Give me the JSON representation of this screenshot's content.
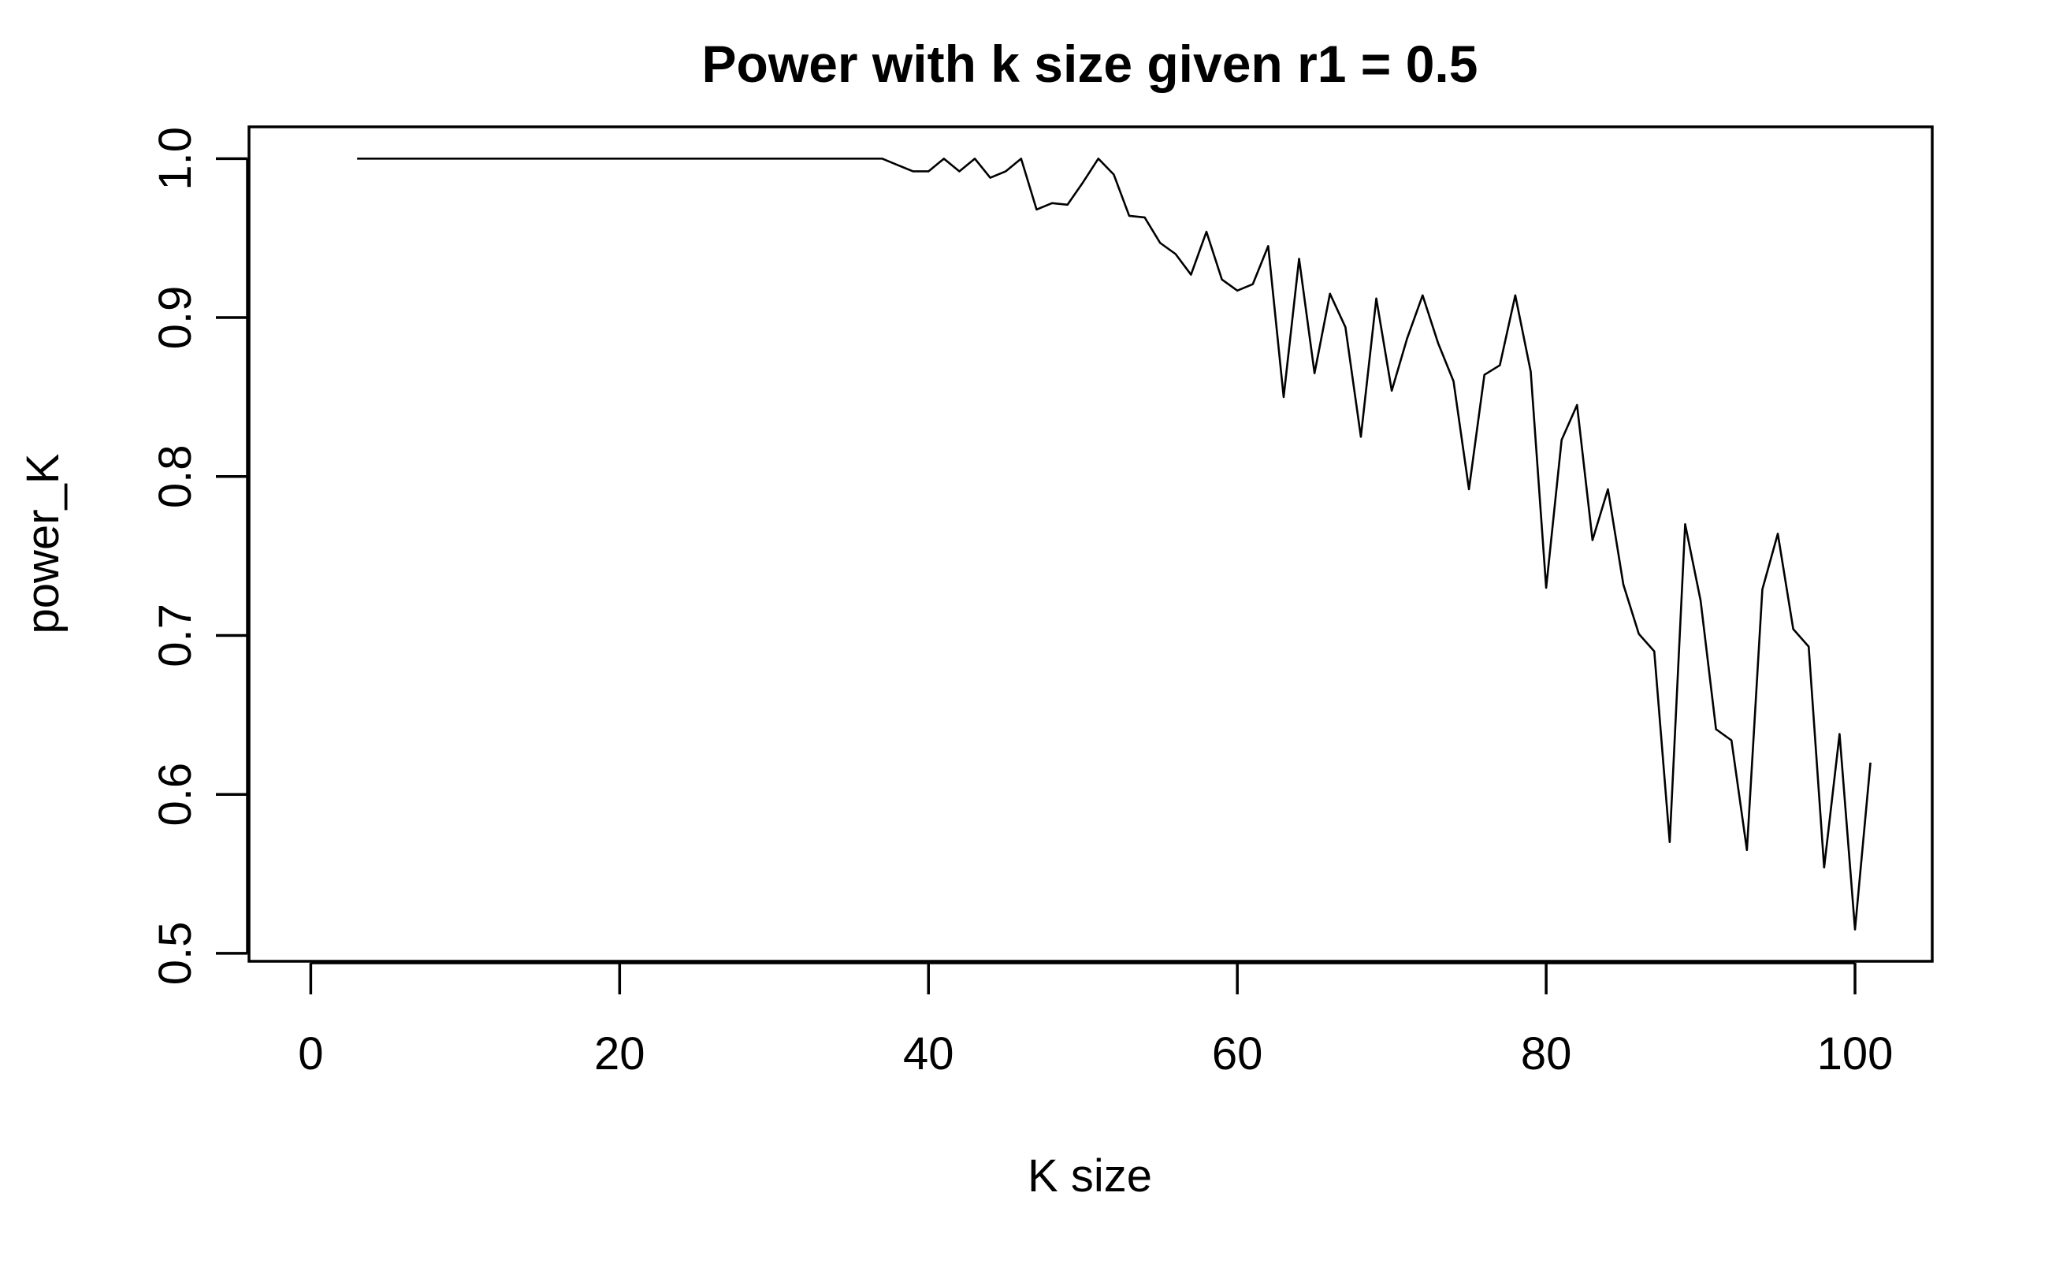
{
  "chart_data": {
    "type": "line",
    "title": "Power with k size given r1 = 0.5",
    "xlabel": "K size",
    "ylabel": "power_K",
    "xlim": [
      -4,
      105
    ],
    "ylim": [
      0.495,
      1.02
    ],
    "xticks": [
      0,
      20,
      40,
      60,
      80,
      100
    ],
    "yticks": [
      0.5,
      0.6,
      0.7,
      0.8,
      0.9,
      1.0
    ],
    "xtick_labels": [
      "0",
      "20",
      "40",
      "60",
      "80",
      "100"
    ],
    "ytick_labels": [
      "0.5",
      "0.6",
      "0.7",
      "0.8",
      "0.9",
      "1.0"
    ],
    "grid": false,
    "series": [
      {
        "color": "#000000",
        "x": [
          3,
          4,
          5,
          6,
          7,
          8,
          9,
          10,
          11,
          12,
          13,
          14,
          15,
          16,
          17,
          18,
          19,
          20,
          21,
          22,
          23,
          24,
          25,
          26,
          27,
          28,
          29,
          30,
          31,
          32,
          33,
          34,
          35,
          36,
          37,
          38,
          39,
          40,
          41,
          42,
          43,
          44,
          45,
          46,
          47,
          48,
          49,
          50,
          51,
          52,
          53,
          54,
          55,
          56,
          57,
          58,
          59,
          60,
          61,
          62,
          63,
          64,
          65,
          66,
          67,
          68,
          69,
          70,
          71,
          72,
          73,
          74,
          75,
          76,
          77,
          78,
          79,
          80,
          81,
          82,
          83,
          84,
          85,
          86,
          87,
          88,
          89,
          90,
          91,
          92,
          93,
          94,
          95,
          96,
          97,
          98,
          99,
          100,
          101
        ],
        "y": [
          1.0,
          1.0,
          1.0,
          1.0,
          1.0,
          1.0,
          1.0,
          1.0,
          1.0,
          1.0,
          1.0,
          1.0,
          1.0,
          1.0,
          1.0,
          1.0,
          1.0,
          1.0,
          1.0,
          1.0,
          1.0,
          1.0,
          1.0,
          1.0,
          1.0,
          1.0,
          1.0,
          1.0,
          1.0,
          1.0,
          1.0,
          1.0,
          1.0,
          1.0,
          1.0,
          0.996,
          0.992,
          0.992,
          1.0,
          0.992,
          1.0,
          0.988,
          0.992,
          1.0,
          0.968,
          0.972,
          0.971,
          0.985,
          1.0,
          0.99,
          0.964,
          0.963,
          0.947,
          0.94,
          0.927,
          0.954,
          0.924,
          0.917,
          0.921,
          0.945,
          0.85,
          0.937,
          0.865,
          0.915,
          0.894,
          0.825,
          0.912,
          0.854,
          0.887,
          0.914,
          0.884,
          0.86,
          0.792,
          0.864,
          0.87,
          0.914,
          0.866,
          0.73,
          0.823,
          0.845,
          0.76,
          0.792,
          0.732,
          0.701,
          0.69,
          0.57,
          0.77,
          0.722,
          0.641,
          0.634,
          0.565,
          0.729,
          0.764,
          0.704,
          0.693,
          0.554,
          0.638,
          0.515,
          0.62
        ]
      }
    ]
  }
}
